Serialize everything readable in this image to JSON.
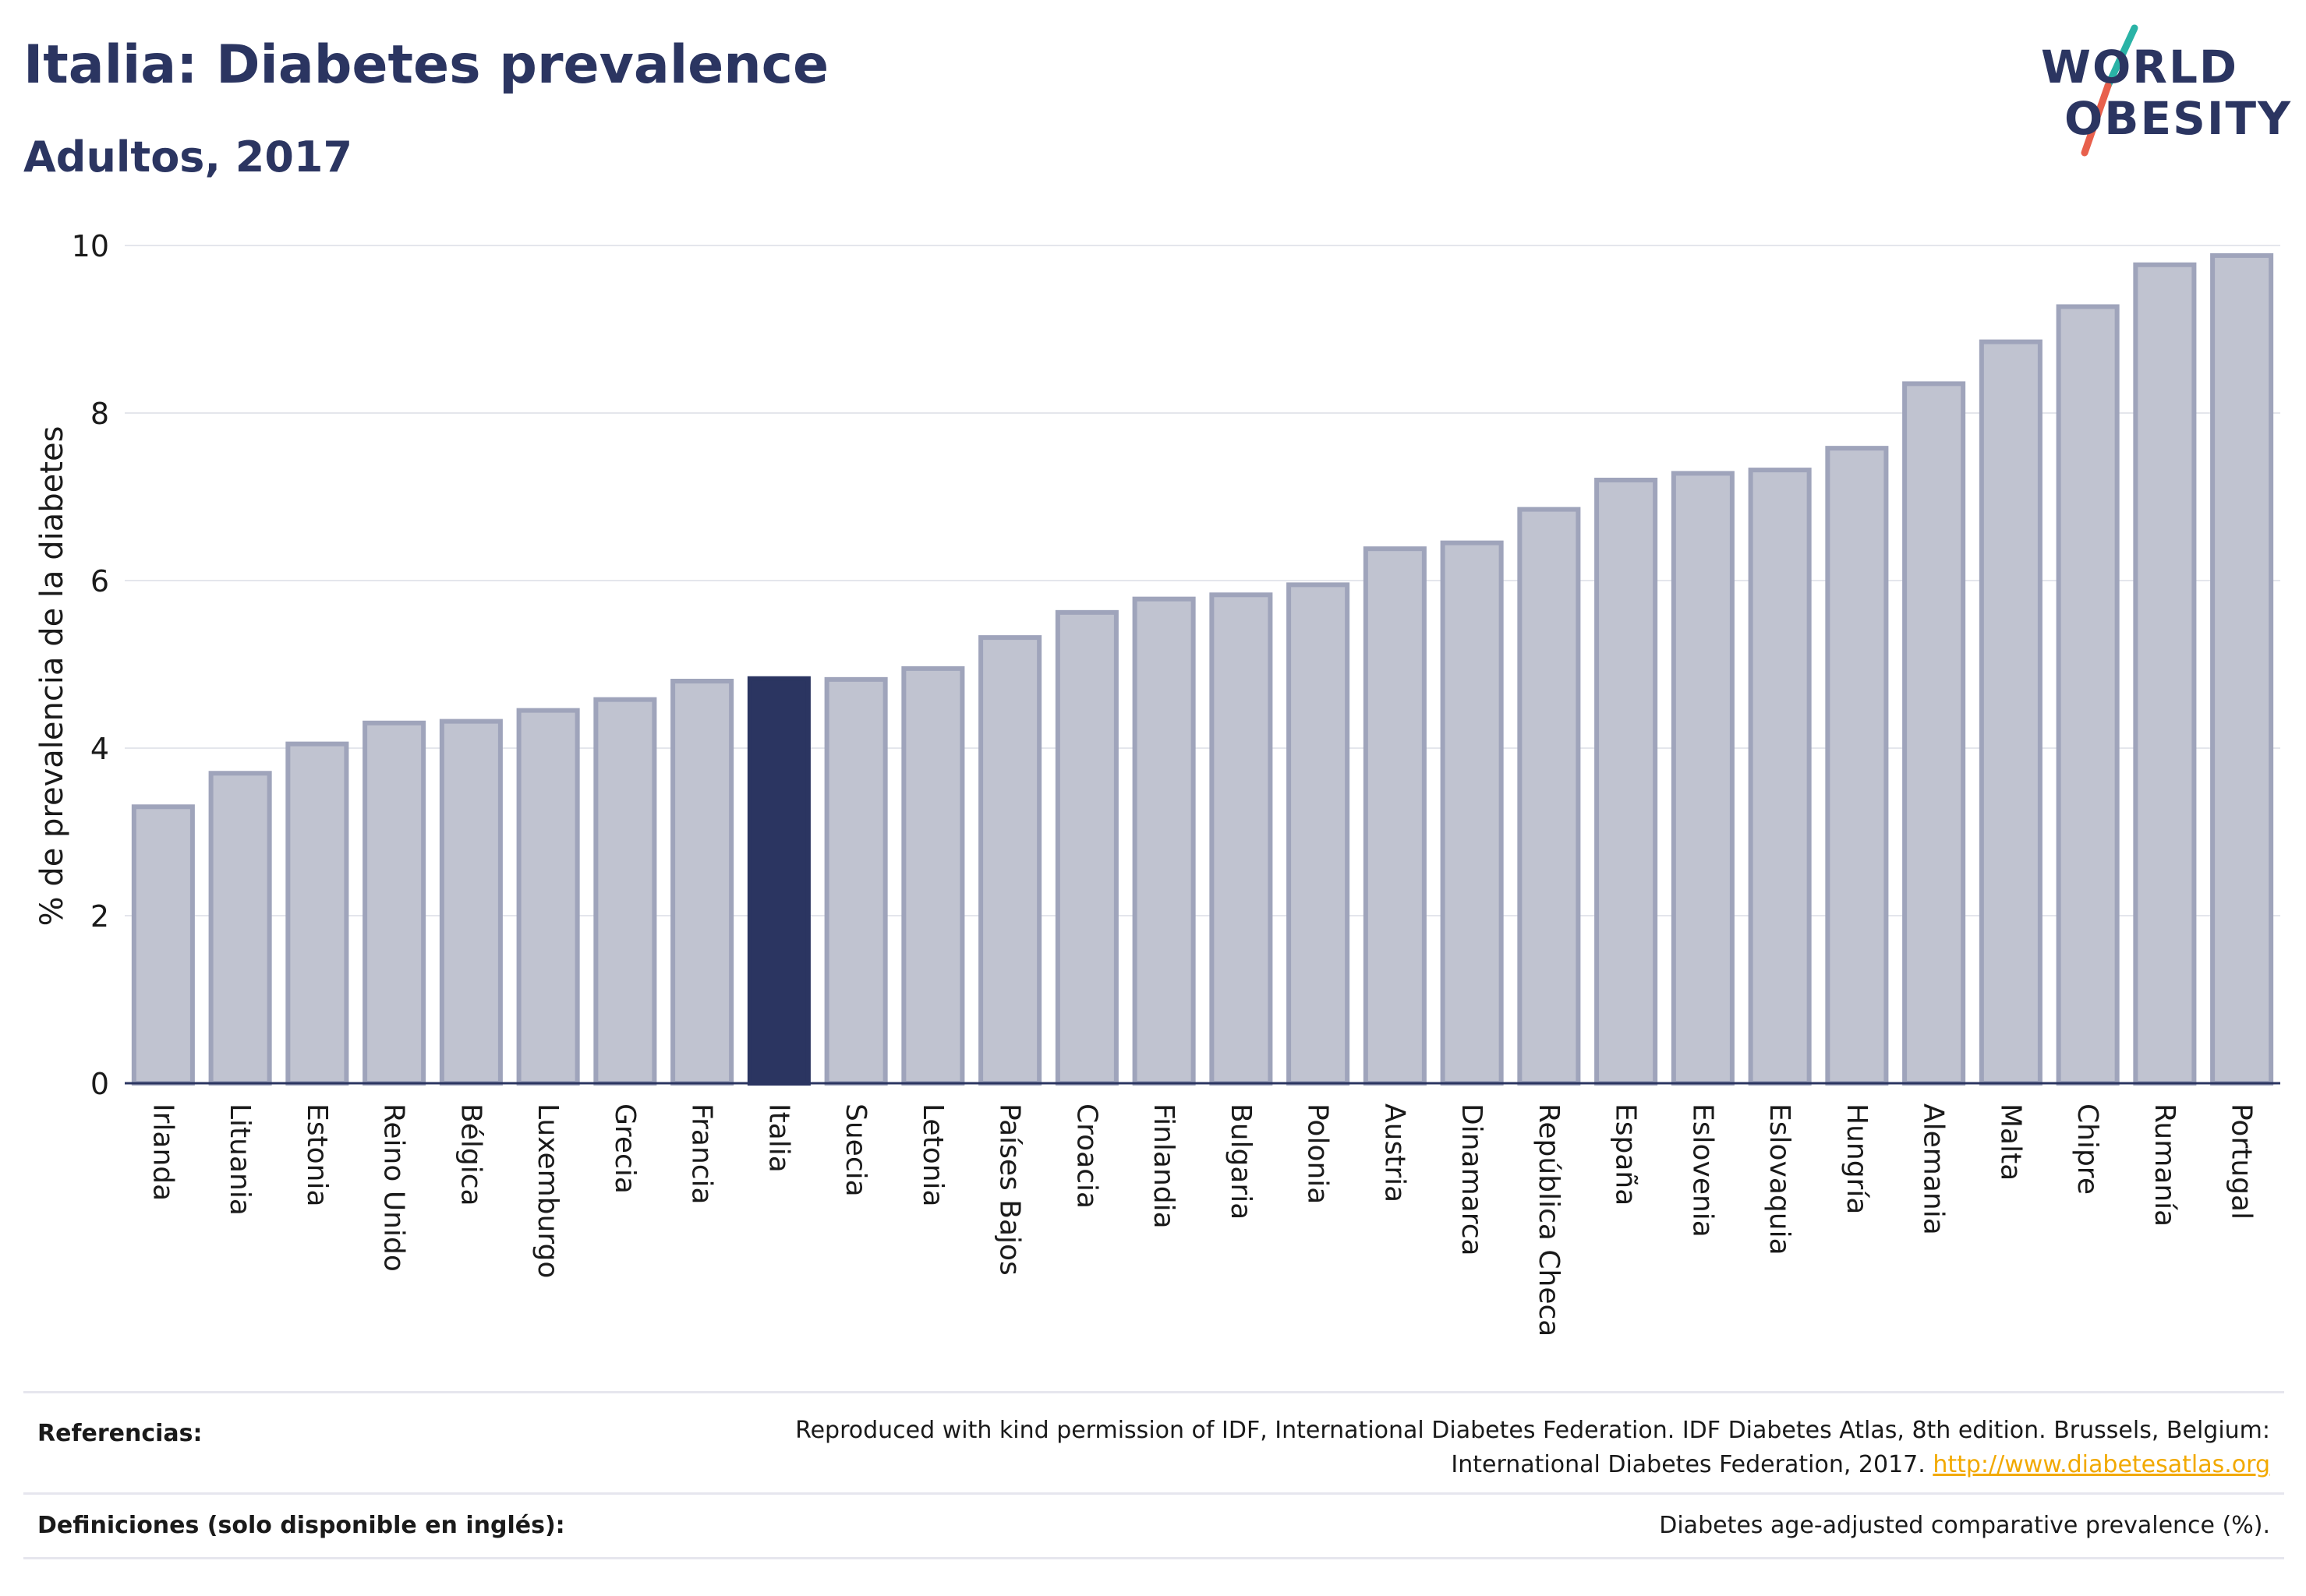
{
  "header": {
    "title": "Italia: Diabetes prevalence",
    "subtitle": "Adultos, 2017"
  },
  "logo": {
    "line1": "WORLD",
    "line2": "OBESITY",
    "colors": {
      "text": "#2b3561",
      "slash_top": "#2ab3a6",
      "slash_bottom": "#e8604c"
    }
  },
  "chart_data": {
    "type": "bar",
    "title": "",
    "xlabel": "",
    "ylabel": "% de prevalencia de la diabetes",
    "ylim": [
      0,
      10
    ],
    "yticks": [
      0,
      2,
      4,
      6,
      8,
      10
    ],
    "grid": true,
    "highlight": "Italia",
    "colors": {
      "bar": "#c0c3d0",
      "bar_edge": "#9fa4bb",
      "highlight": "#2b3561",
      "grid": "#e4e6ec",
      "axis": "#2b3561"
    },
    "categories": [
      "Irlanda",
      "Lituania",
      "Estonia",
      "Reino Unido",
      "Bélgica",
      "Luxemburgo",
      "Grecia",
      "Francia",
      "Italia",
      "Suecia",
      "Letonia",
      "Países Bajos",
      "Croacia",
      "Finlandia",
      "Bulgaria",
      "Polonia",
      "Austria",
      "Dinamarca",
      "República Checa",
      "España",
      "Eslovenia",
      "Eslovaquia",
      "Hungría",
      "Alemania",
      "Malta",
      "Chipre",
      "Rumanía",
      "Portugal"
    ],
    "values": [
      3.3,
      3.7,
      4.05,
      4.3,
      4.32,
      4.45,
      4.58,
      4.8,
      4.83,
      4.82,
      4.95,
      5.32,
      5.62,
      5.78,
      5.83,
      5.95,
      6.38,
      6.45,
      6.85,
      7.2,
      7.28,
      7.32,
      7.58,
      8.35,
      8.85,
      9.27,
      9.77,
      9.88
    ]
  },
  "footer": {
    "references_label": "Referencias:",
    "references_text": "Reproduced with kind permission of IDF, International Diabetes Federation. IDF Diabetes Atlas, 8th edition. Brussels, Belgium:",
    "references_text2": "International Diabetes Federation, 2017.",
    "references_link": "http://www.diabetesatlas.org",
    "definitions_label": "Definiciones (solo disponible en inglés):",
    "definitions_text": "Diabetes age-adjusted comparative prevalence (%)."
  }
}
